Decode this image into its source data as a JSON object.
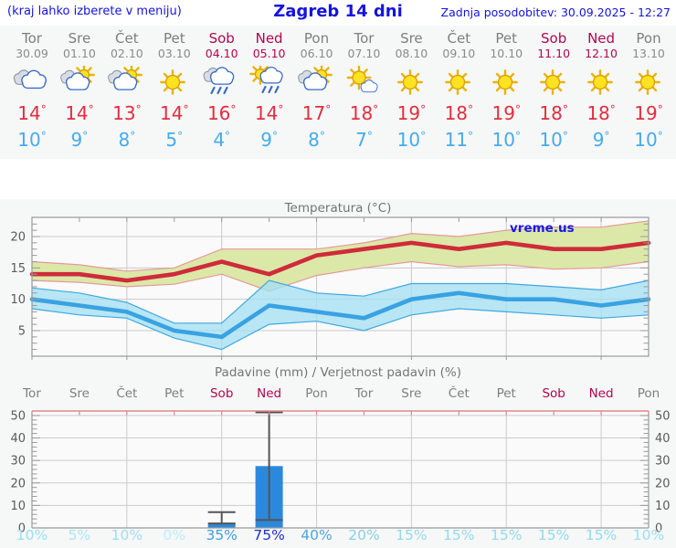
{
  "header": {
    "hint": "(kraj lahko izberete v meniju)",
    "title": "Zagreb 14 dni",
    "updated": "Zadnja posodobitev: 30.09.2025 - 12:27"
  },
  "degree_symbol": "°",
  "colors": {
    "header_blue": "#1414dd",
    "weekend": "#b0074f",
    "day_gray": "#7e7e7e",
    "high_red": "#e22d3f",
    "low_blue": "#45abee",
    "panel_bg": "#f6f7f7",
    "grid": "#c9c9c9",
    "frame": "#9a9a9a",
    "axis_text": "#5a5a5a",
    "pink_axis": "#e08888",
    "watermark_blue": "#1818e6"
  },
  "forecast": {
    "days": [
      {
        "name": "Tor",
        "date": "30.09",
        "icon": "cloudy",
        "high": 14,
        "low": 10,
        "weekend": false
      },
      {
        "name": "Sre",
        "date": "01.10",
        "icon": "partly-cloudy",
        "high": 14,
        "low": 9,
        "weekend": false
      },
      {
        "name": "Čet",
        "date": "02.10",
        "icon": "partly-cloudy",
        "high": 13,
        "low": 8,
        "weekend": false
      },
      {
        "name": "Pet",
        "date": "03.10",
        "icon": "sunny",
        "high": 14,
        "low": 5,
        "weekend": false
      },
      {
        "name": "Sob",
        "date": "04.10",
        "icon": "rain",
        "high": 16,
        "low": 4,
        "weekend": true
      },
      {
        "name": "Ned",
        "date": "05.10",
        "icon": "sun-rain",
        "high": 14,
        "low": 9,
        "weekend": true
      },
      {
        "name": "Pon",
        "date": "06.10",
        "icon": "partly-cloudy",
        "high": 17,
        "low": 8,
        "weekend": false
      },
      {
        "name": "Tor",
        "date": "07.10",
        "icon": "mostly-sunny",
        "high": 18,
        "low": 7,
        "weekend": false
      },
      {
        "name": "Sre",
        "date": "08.10",
        "icon": "sunny",
        "high": 19,
        "low": 10,
        "weekend": false
      },
      {
        "name": "Čet",
        "date": "09.10",
        "icon": "sunny",
        "high": 18,
        "low": 11,
        "weekend": false
      },
      {
        "name": "Pet",
        "date": "10.10",
        "icon": "sunny",
        "high": 19,
        "low": 10,
        "weekend": false
      },
      {
        "name": "Sob",
        "date": "11.10",
        "icon": "sunny",
        "high": 18,
        "low": 10,
        "weekend": true
      },
      {
        "name": "Ned",
        "date": "12.10",
        "icon": "sunny",
        "high": 18,
        "low": 9,
        "weekend": true
      },
      {
        "name": "Pon",
        "date": "13.10",
        "icon": "sunny",
        "high": 19,
        "low": 10,
        "weekend": false
      }
    ]
  },
  "chart_data": [
    {
      "type": "line",
      "title": "Temperatura (°C)",
      "watermark": "vreme.us",
      "x_labels": [
        "Tor",
        "Sre",
        "Čet",
        "Pet",
        "Sob",
        "Ned",
        "Pon",
        "Tor",
        "Sre",
        "Čet",
        "Pet",
        "Sob",
        "Ned",
        "Pon"
      ],
      "ylim": [
        1,
        23
      ],
      "yticks": [
        5,
        10,
        15,
        20
      ],
      "grid": true,
      "series": [
        {
          "name": "max-temperatura",
          "color": "#cf2b3a",
          "values": [
            14,
            14,
            13,
            14,
            16,
            14,
            17,
            18,
            19,
            18,
            19,
            18,
            18,
            19
          ]
        },
        {
          "name": "min-temperatura",
          "color": "#39a2e2",
          "values": [
            10,
            9,
            8,
            5,
            4,
            9,
            8,
            7,
            10,
            11,
            10,
            10,
            9,
            10
          ]
        }
      ],
      "bands": [
        {
          "name": "max-razpon",
          "fill": "#dbe8a8",
          "edge": "#e89898",
          "hi": [
            16,
            15.5,
            14.5,
            15,
            18,
            18,
            18,
            19,
            20.5,
            20,
            21,
            21.5,
            21.5,
            22.5
          ],
          "lo": [
            13,
            12.7,
            12,
            12.4,
            14,
            11.3,
            13.8,
            15,
            16,
            15.2,
            15.5,
            14.8,
            15,
            16
          ]
        },
        {
          "name": "min-razpon",
          "fill": "#a5e0f2",
          "edge": "#3fa8e0",
          "hi": [
            11.8,
            11,
            9.5,
            6.2,
            6.2,
            13,
            11,
            10.5,
            12.5,
            12.5,
            12.5,
            12,
            11.5,
            13
          ],
          "lo": [
            8.5,
            7.5,
            7,
            3.8,
            2,
            6,
            6.5,
            5,
            7.5,
            8.5,
            8,
            7.5,
            7,
            7.5
          ]
        }
      ]
    },
    {
      "type": "bar",
      "title": "Padavine (mm) / Verjetnost padavin (%)",
      "x_labels": [
        "Tor",
        "Sre",
        "Čet",
        "Pet",
        "Sob",
        "Ned",
        "Pon",
        "Tor",
        "Sre",
        "Čet",
        "Pet",
        "Sob",
        "Ned",
        "Pon"
      ],
      "weekend_flags": [
        false,
        false,
        false,
        false,
        true,
        true,
        false,
        false,
        false,
        false,
        false,
        true,
        true,
        false
      ],
      "ylim": [
        0,
        52
      ],
      "yticks": [
        0,
        10,
        20,
        30,
        40,
        50
      ],
      "grid": true,
      "bar_color": "#2a89dd",
      "whisker_color": "#555555",
      "values_mm": [
        0,
        0,
        0,
        0,
        2,
        27.5,
        0,
        0,
        0,
        0,
        0,
        0,
        0,
        0
      ],
      "whiskers": [
        null,
        null,
        null,
        null,
        {
          "lo": 2,
          "hi": 7
        },
        {
          "lo": 3.5,
          "hi": 52
        },
        null,
        null,
        null,
        null,
        null,
        null,
        null,
        null
      ],
      "probabilities": [
        {
          "label": "10%",
          "color": "#9bdff2"
        },
        {
          "label": "5%",
          "color": "#abe6f5"
        },
        {
          "label": "10%",
          "color": "#9bdff2"
        },
        {
          "label": "0%",
          "color": "#bceef8"
        },
        {
          "label": "35%",
          "color": "#3d9de0"
        },
        {
          "label": "75%",
          "color": "#1e2ec8"
        },
        {
          "label": "40%",
          "color": "#4da5e2"
        },
        {
          "label": "20%",
          "color": "#83d2ea"
        },
        {
          "label": "15%",
          "color": "#92daee"
        },
        {
          "label": "15%",
          "color": "#92daee"
        },
        {
          "label": "15%",
          "color": "#92daee"
        },
        {
          "label": "15%",
          "color": "#92daee"
        },
        {
          "label": "15%",
          "color": "#92daee"
        },
        {
          "label": "10%",
          "color": "#9bdff2"
        }
      ]
    }
  ]
}
